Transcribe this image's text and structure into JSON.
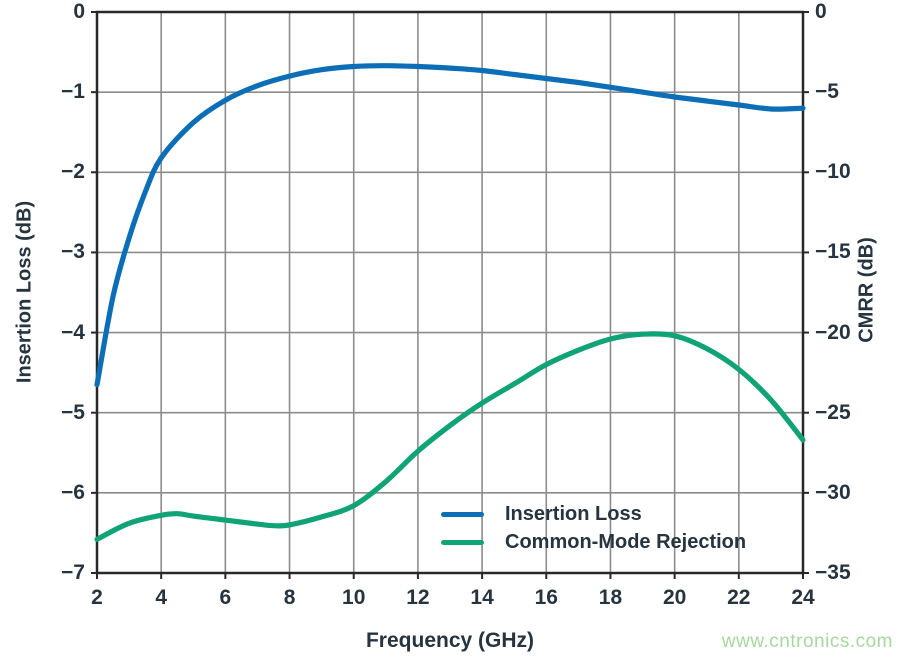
{
  "chart_data": {
    "type": "line",
    "title": "",
    "xlabel": "Frequency (GHz)",
    "ylabel_left": "Insertion Loss (dB)",
    "ylabel_right": "CMRR (dB)",
    "xlim": [
      2,
      24
    ],
    "ylim_left": [
      -7,
      0
    ],
    "ylim_right": [
      -35,
      0
    ],
    "xticks": [
      2,
      4,
      6,
      8,
      10,
      12,
      14,
      16,
      18,
      20,
      22,
      24
    ],
    "yticks_left": [
      0,
      -1,
      -2,
      -3,
      -4,
      -5,
      -6,
      -7
    ],
    "yticks_right": [
      0,
      -5,
      -10,
      -15,
      -20,
      -25,
      -30,
      -35
    ],
    "grid": true,
    "grid_color": "#8c8c8c",
    "frame_color": "#282828",
    "legend_position": "inside-bottom-right",
    "series": [
      {
        "name": "Insertion Loss",
        "axis": "left",
        "color": "#0d6eb8",
        "x": [
          2,
          2.5,
          3,
          3.5,
          4,
          5,
          6,
          7,
          8,
          9,
          10,
          11,
          12,
          13,
          14,
          15,
          16,
          17,
          18,
          19,
          20,
          21,
          22,
          23,
          24
        ],
        "y": [
          -4.65,
          -3.55,
          -2.82,
          -2.25,
          -1.82,
          -1.38,
          -1.1,
          -0.92,
          -0.8,
          -0.72,
          -0.68,
          -0.67,
          -0.68,
          -0.7,
          -0.73,
          -0.78,
          -0.83,
          -0.88,
          -0.94,
          -1.0,
          -1.06,
          -1.11,
          -1.16,
          -1.21,
          -1.2
        ]
      },
      {
        "name": "Common-Mode Rejection",
        "axis": "right",
        "color": "#10a377",
        "x": [
          2,
          3,
          4,
          4.5,
          5,
          6,
          7,
          7.5,
          8,
          9,
          10,
          11,
          12,
          13,
          14,
          15,
          16,
          17,
          18,
          19,
          20,
          21,
          22,
          23,
          24
        ],
        "y": [
          -32.9,
          -31.9,
          -31.4,
          -31.3,
          -31.45,
          -31.7,
          -31.95,
          -32.05,
          -32.0,
          -31.5,
          -30.8,
          -29.3,
          -27.4,
          -25.8,
          -24.4,
          -23.2,
          -22.0,
          -21.1,
          -20.4,
          -20.1,
          -20.2,
          -21.0,
          -22.3,
          -24.2,
          -26.7
        ]
      }
    ]
  },
  "legend": {
    "items": [
      {
        "label": "Insertion Loss",
        "color": "#0d6eb8"
      },
      {
        "label": "Common-Mode Rejection",
        "color": "#10a377"
      }
    ]
  },
  "watermark": {
    "text": "www.cntronics.com",
    "color": "#a8d8a0"
  },
  "text_color": "#26343f"
}
